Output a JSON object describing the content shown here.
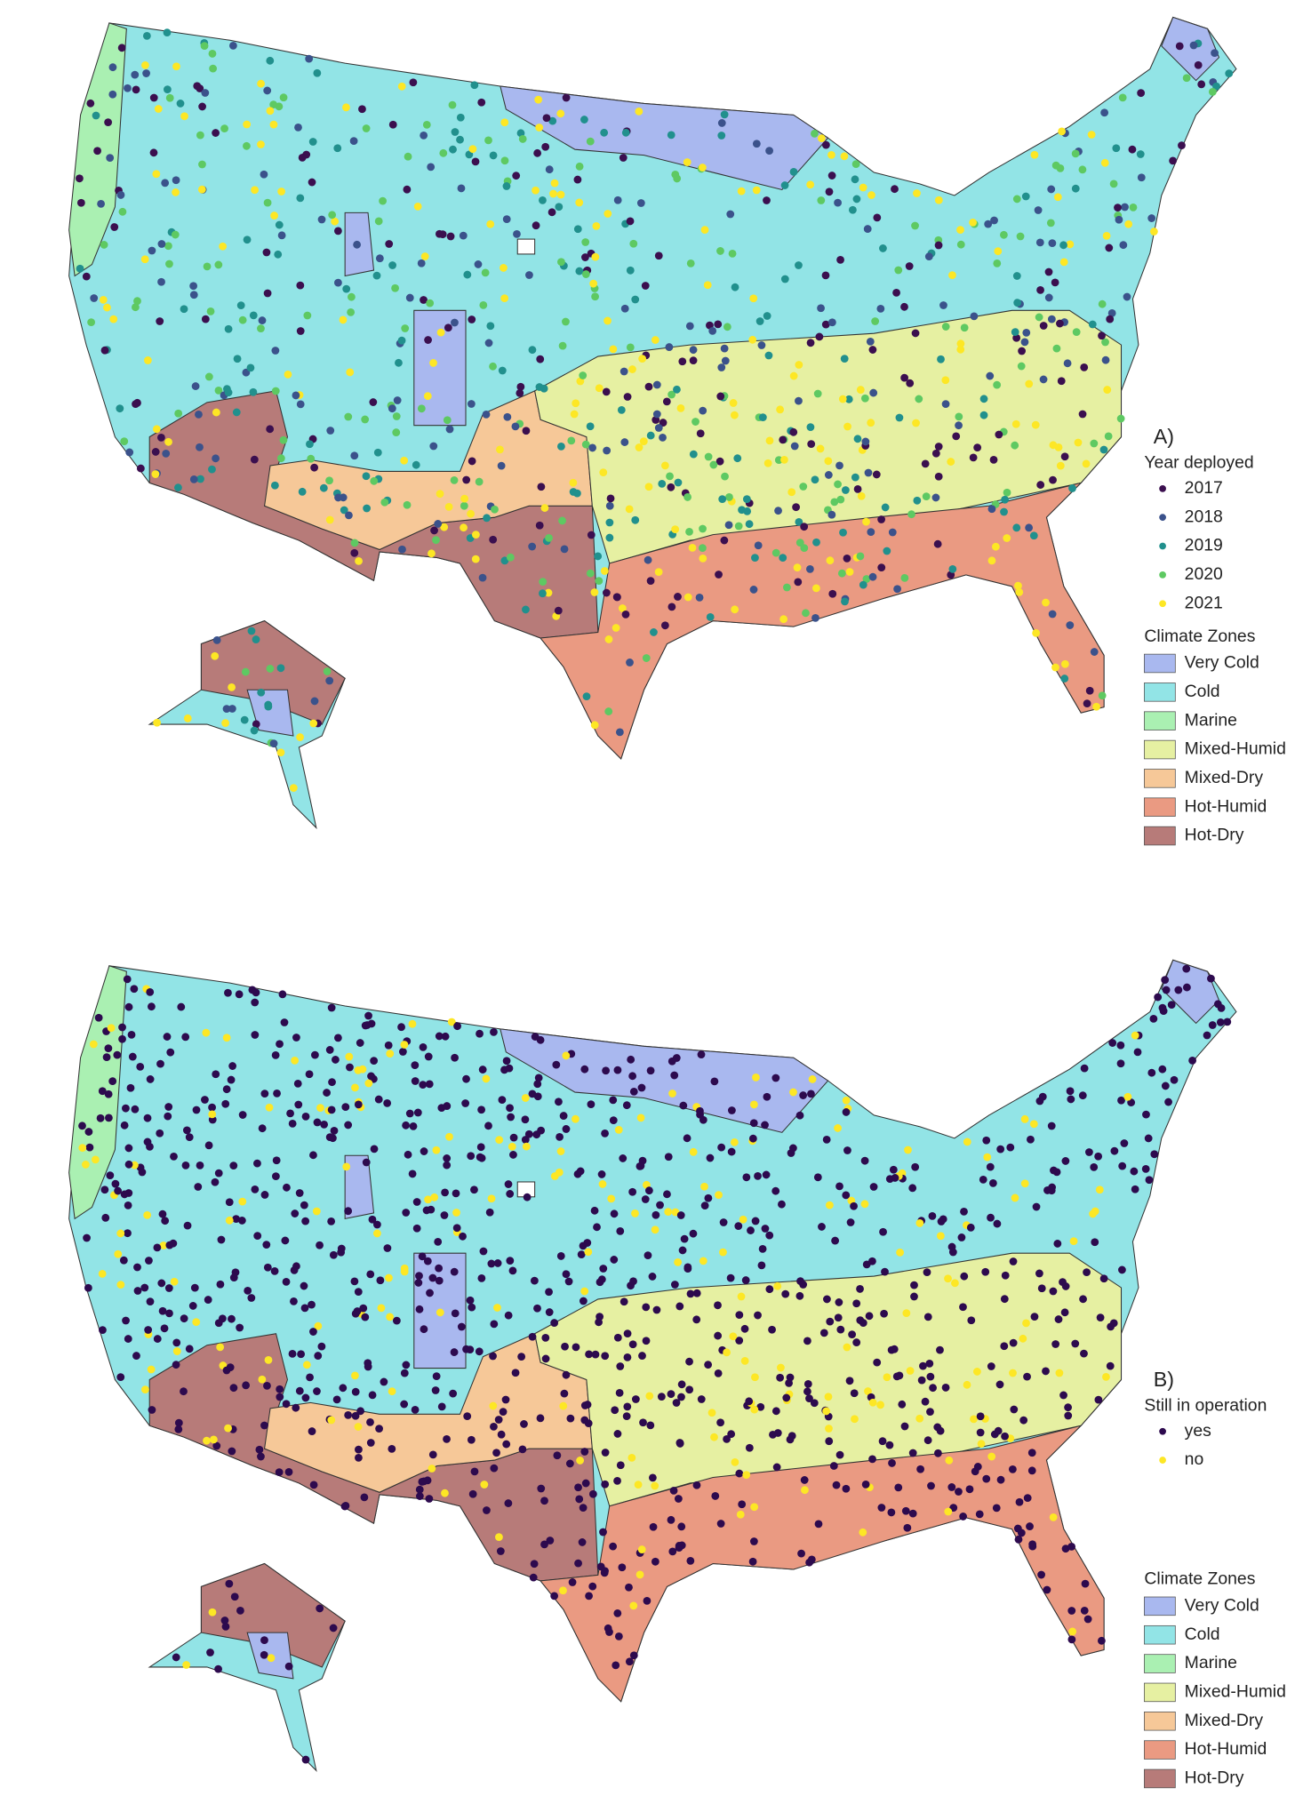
{
  "panels": [
    {
      "label": "A)",
      "legend_title": "Year deployed",
      "points": [
        {
          "name": "2017",
          "color": "#3b0f4f"
        },
        {
          "name": "2018",
          "color": "#3b528b"
        },
        {
          "name": "2019",
          "color": "#21908d"
        },
        {
          "name": "2020",
          "color": "#5ec962"
        },
        {
          "name": "2021",
          "color": "#fde725"
        }
      ],
      "zones_title": "Climate Zones",
      "zones": [
        {
          "name": "Very Cold",
          "color": "#a9b8ef"
        },
        {
          "name": "Cold",
          "color": "#92e4e6"
        },
        {
          "name": "Marine",
          "color": "#aaf0b2"
        },
        {
          "name": "Mixed-Humid",
          "color": "#e6f0a2"
        },
        {
          "name": "Mixed-Dry",
          "color": "#f6c898"
        },
        {
          "name": "Hot-Humid",
          "color": "#ea9a82"
        },
        {
          "name": "Hot-Dry",
          "color": "#b77b79"
        }
      ]
    },
    {
      "label": "B)",
      "legend_title": "Still in operation",
      "points": [
        {
          "name": "yes",
          "color": "#2d0a4e"
        },
        {
          "name": "no",
          "color": "#fde725"
        }
      ],
      "zones_title": "Climate Zones",
      "zones": [
        {
          "name": "Very Cold",
          "color": "#a9b8ef"
        },
        {
          "name": "Cold",
          "color": "#92e4e6"
        },
        {
          "name": "Marine",
          "color": "#aaf0b2"
        },
        {
          "name": "Mixed-Humid",
          "color": "#e6f0a2"
        },
        {
          "name": "Mixed-Dry",
          "color": "#f6c898"
        },
        {
          "name": "Hot-Humid",
          "color": "#ea9a82"
        },
        {
          "name": "Hot-Dry",
          "color": "#b77b79"
        }
      ]
    }
  ]
}
